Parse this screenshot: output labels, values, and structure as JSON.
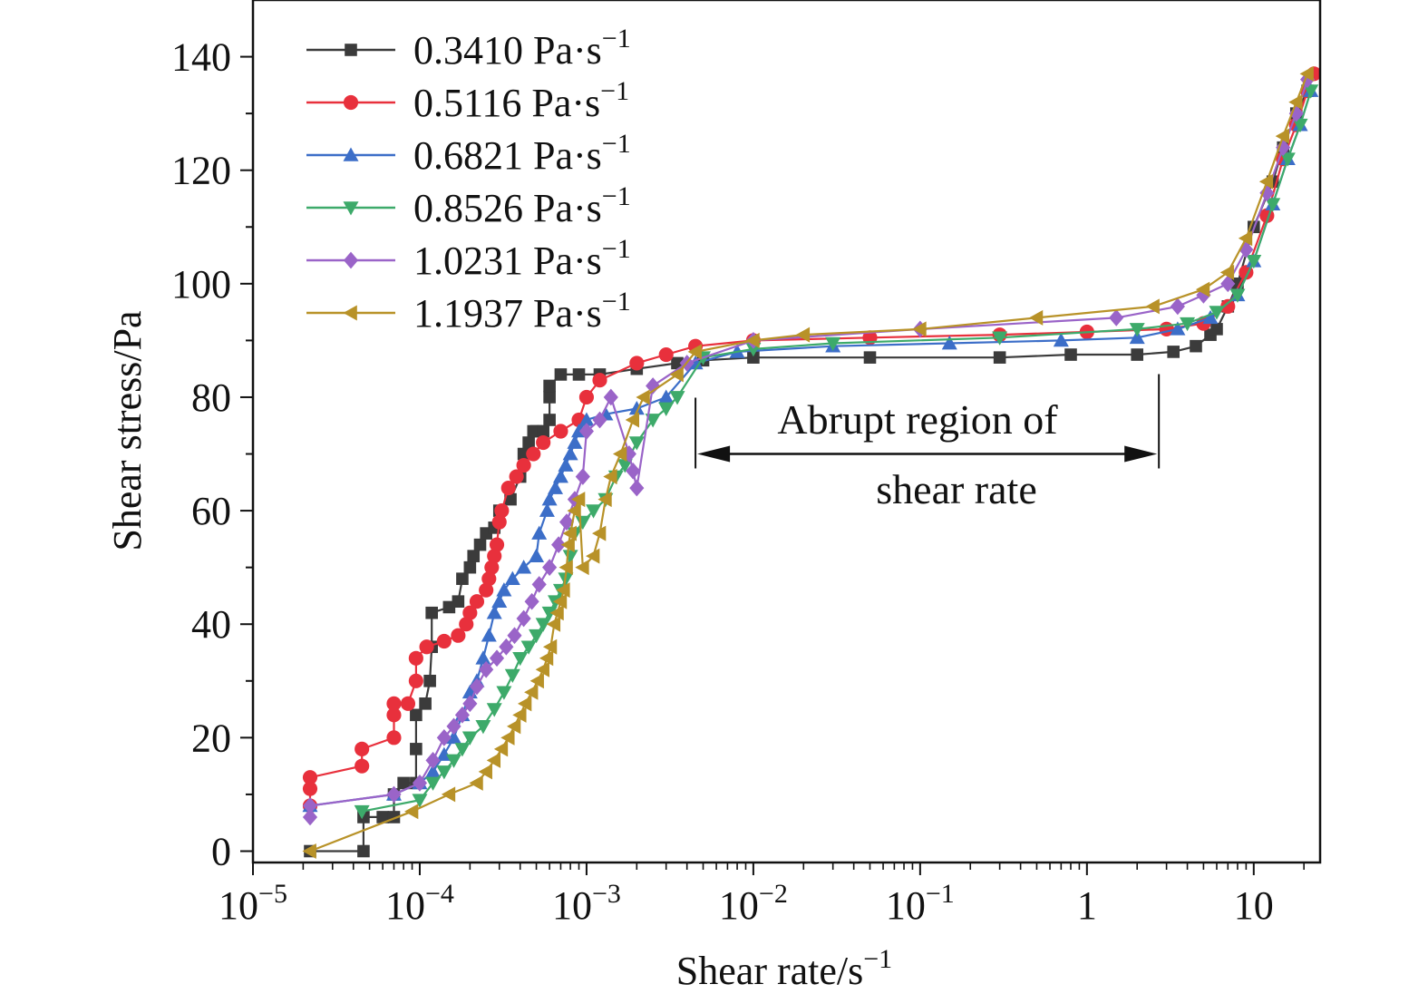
{
  "chart_data": {
    "type": "scatter",
    "title": "",
    "xlabel": "Shear rate/s",
    "xlabel_sup": "−1",
    "ylabel": "Shear stress/Pa",
    "xscale": "log",
    "xlim": [
      1e-05,
      25
    ],
    "ylim": [
      -2,
      150
    ],
    "grid": false,
    "legend_position": "top-left",
    "x_ticks": [
      {
        "value": 1e-05,
        "base": "10",
        "sup": "−5"
      },
      {
        "value": 0.0001,
        "base": "10",
        "sup": "−4"
      },
      {
        "value": 0.001,
        "base": "10",
        "sup": "−3"
      },
      {
        "value": 0.01,
        "base": "10",
        "sup": "−2"
      },
      {
        "value": 0.1,
        "base": "10",
        "sup": "−1"
      },
      {
        "value": 1,
        "base": "1",
        "sup": ""
      },
      {
        "value": 10,
        "base": "10",
        "sup": ""
      }
    ],
    "y_ticks": [
      0,
      20,
      40,
      60,
      80,
      100,
      120,
      140
    ],
    "series": [
      {
        "name": "0.3410 Pa·s",
        "name_sup": "−1",
        "color": "#3b3b3b",
        "marker": "square",
        "points": [
          [
            2.2e-05,
            0
          ],
          [
            4.6e-05,
            0
          ],
          [
            4.6e-05,
            6
          ],
          [
            6e-05,
            6
          ],
          [
            7e-05,
            6
          ],
          [
            7e-05,
            10
          ],
          [
            8e-05,
            12
          ],
          [
            9.5e-05,
            12
          ],
          [
            9.5e-05,
            18
          ],
          [
            9.5e-05,
            24
          ],
          [
            0.000108,
            26
          ],
          [
            0.000115,
            30
          ],
          [
            0.000118,
            36
          ],
          [
            0.000118,
            42
          ],
          [
            0.00015,
            43
          ],
          [
            0.00017,
            44
          ],
          [
            0.00018,
            48
          ],
          [
            0.0002,
            50
          ],
          [
            0.00021,
            52
          ],
          [
            0.00023,
            54
          ],
          [
            0.00025,
            56
          ],
          [
            0.00028,
            57
          ],
          [
            0.0003,
            60
          ],
          [
            0.00035,
            62
          ],
          [
            0.0004,
            66
          ],
          [
            0.00042,
            70
          ],
          [
            0.00045,
            72
          ],
          [
            0.00048,
            74
          ],
          [
            0.0005,
            74
          ],
          [
            0.00055,
            74
          ],
          [
            0.0006,
            76
          ],
          [
            0.0006,
            80
          ],
          [
            0.0006,
            82
          ],
          [
            0.0007,
            84
          ],
          [
            0.0009,
            84
          ],
          [
            0.0012,
            84
          ],
          [
            0.002,
            85
          ],
          [
            0.0035,
            86
          ],
          [
            0.005,
            86.5
          ],
          [
            0.01,
            87
          ],
          [
            0.05,
            87
          ],
          [
            0.3,
            87
          ],
          [
            0.8,
            87.5
          ],
          [
            2,
            87.5
          ],
          [
            3.3,
            88
          ],
          [
            4.5,
            89
          ],
          [
            5.5,
            91
          ],
          [
            6,
            92
          ],
          [
            7,
            96
          ],
          [
            8,
            100
          ],
          [
            10,
            110
          ],
          [
            13,
            118
          ],
          [
            15,
            124
          ],
          [
            18,
            130
          ],
          [
            21,
            134
          ]
        ]
      },
      {
        "name": "0.5116 Pa·s",
        "name_sup": "−1",
        "color": "#e8303c",
        "marker": "circle",
        "points": [
          [
            2.2e-05,
            8
          ],
          [
            2.2e-05,
            11
          ],
          [
            2.2e-05,
            13
          ],
          [
            4.5e-05,
            15
          ],
          [
            4.5e-05,
            18
          ],
          [
            7e-05,
            20
          ],
          [
            7e-05,
            24
          ],
          [
            7e-05,
            26
          ],
          [
            8.5e-05,
            26
          ],
          [
            9.5e-05,
            30
          ],
          [
            9.5e-05,
            34
          ],
          [
            0.00011,
            36
          ],
          [
            0.00014,
            37
          ],
          [
            0.00017,
            38
          ],
          [
            0.00019,
            40
          ],
          [
            0.0002,
            42
          ],
          [
            0.00022,
            44
          ],
          [
            0.00025,
            46
          ],
          [
            0.00026,
            48
          ],
          [
            0.00027,
            50
          ],
          [
            0.00028,
            52
          ],
          [
            0.00029,
            54
          ],
          [
            0.0003,
            58
          ],
          [
            0.00031,
            60
          ],
          [
            0.00034,
            64
          ],
          [
            0.00038,
            66
          ],
          [
            0.00042,
            68
          ],
          [
            0.00048,
            70
          ],
          [
            0.00055,
            72
          ],
          [
            0.0007,
            74
          ],
          [
            0.0009,
            76
          ],
          [
            0.001,
            80
          ],
          [
            0.0012,
            83
          ],
          [
            0.002,
            86
          ],
          [
            0.003,
            87.5
          ],
          [
            0.0045,
            89
          ],
          [
            0.01,
            90
          ],
          [
            0.05,
            90.5
          ],
          [
            0.3,
            91
          ],
          [
            1,
            91.5
          ],
          [
            3,
            92
          ],
          [
            5,
            93
          ],
          [
            7,
            96
          ],
          [
            9,
            102
          ],
          [
            12,
            112
          ],
          [
            15,
            122
          ],
          [
            18,
            128
          ],
          [
            21,
            134
          ],
          [
            23,
            137
          ]
        ]
      },
      {
        "name": "0.6821 Pa·s",
        "name_sup": "−1",
        "color": "#3c6ec8",
        "marker": "triangle-up",
        "points": [
          [
            2.2e-05,
            8
          ],
          [
            7e-05,
            10
          ],
          [
            0.0001,
            12
          ],
          [
            0.00012,
            14
          ],
          [
            0.00014,
            17
          ],
          [
            0.00016,
            20
          ],
          [
            0.00018,
            24
          ],
          [
            0.0002,
            28
          ],
          [
            0.00022,
            30
          ],
          [
            0.00024,
            34
          ],
          [
            0.00026,
            38
          ],
          [
            0.00028,
            42
          ],
          [
            0.0003,
            44
          ],
          [
            0.00032,
            46
          ],
          [
            0.00036,
            48
          ],
          [
            0.00042,
            50
          ],
          [
            0.0005,
            52
          ],
          [
            0.00052,
            56
          ],
          [
            0.00058,
            60
          ],
          [
            0.0006,
            62
          ],
          [
            0.00065,
            64
          ],
          [
            0.0007,
            66
          ],
          [
            0.00075,
            68
          ],
          [
            0.0008,
            70
          ],
          [
            0.00085,
            72
          ],
          [
            0.0009,
            74
          ],
          [
            0.001,
            76
          ],
          [
            0.0013,
            77
          ],
          [
            0.002,
            78
          ],
          [
            0.003,
            80
          ],
          [
            0.0045,
            86
          ],
          [
            0.008,
            88
          ],
          [
            0.03,
            89
          ],
          [
            0.15,
            89.5
          ],
          [
            0.7,
            90
          ],
          [
            2,
            90.5
          ],
          [
            3.5,
            92
          ],
          [
            5.5,
            94
          ],
          [
            8,
            98
          ],
          [
            10,
            104
          ],
          [
            13,
            114
          ],
          [
            16,
            122
          ],
          [
            19,
            128
          ],
          [
            22,
            134
          ]
        ]
      },
      {
        "name": "0.8526 Pa·s",
        "name_sup": "−1",
        "color": "#3daa6a",
        "marker": "triangle-down",
        "points": [
          [
            4.5e-05,
            7
          ],
          [
            0.0001,
            9
          ],
          [
            0.00012,
            12
          ],
          [
            0.00014,
            14
          ],
          [
            0.00016,
            16
          ],
          [
            0.00018,
            18
          ],
          [
            0.0002,
            20
          ],
          [
            0.00024,
            22
          ],
          [
            0.00028,
            25
          ],
          [
            0.00032,
            28
          ],
          [
            0.00036,
            31
          ],
          [
            0.0004,
            34
          ],
          [
            0.00045,
            36
          ],
          [
            0.0005,
            38
          ],
          [
            0.00055,
            40
          ],
          [
            0.0006,
            42
          ],
          [
            0.00065,
            44
          ],
          [
            0.0007,
            46
          ],
          [
            0.00075,
            48
          ],
          [
            0.0008,
            52
          ],
          [
            0.00085,
            56
          ],
          [
            0.00095,
            58
          ],
          [
            0.0011,
            60
          ],
          [
            0.0013,
            62
          ],
          [
            0.0015,
            66
          ],
          [
            0.0017,
            68
          ],
          [
            0.002,
            72
          ],
          [
            0.0025,
            76
          ],
          [
            0.003,
            78
          ],
          [
            0.0035,
            80
          ],
          [
            0.005,
            87
          ],
          [
            0.01,
            88.5
          ],
          [
            0.03,
            89.5
          ],
          [
            0.3,
            90.5
          ],
          [
            2,
            92
          ],
          [
            4,
            93
          ],
          [
            6,
            95
          ],
          [
            8,
            98
          ],
          [
            10,
            104
          ],
          [
            13,
            114
          ],
          [
            16,
            122
          ],
          [
            19,
            128
          ],
          [
            22,
            134
          ]
        ]
      },
      {
        "name": "1.0231 Pa·s",
        "name_sup": "−1",
        "color": "#9a64c8",
        "marker": "diamond",
        "points": [
          [
            2.2e-05,
            6
          ],
          [
            2.2e-05,
            8
          ],
          [
            7e-05,
            10
          ],
          [
            0.0001,
            12
          ],
          [
            0.00012,
            16
          ],
          [
            0.00014,
            20
          ],
          [
            0.00016,
            22
          ],
          [
            0.00018,
            24
          ],
          [
            0.0002,
            26
          ],
          [
            0.00022,
            29
          ],
          [
            0.00025,
            32
          ],
          [
            0.00029,
            34
          ],
          [
            0.00033,
            36
          ],
          [
            0.00037,
            38
          ],
          [
            0.00042,
            41
          ],
          [
            0.00047,
            44
          ],
          [
            0.00052,
            47
          ],
          [
            0.0006,
            50
          ],
          [
            0.00068,
            54
          ],
          [
            0.00076,
            58
          ],
          [
            0.00085,
            62
          ],
          [
            0.00095,
            66
          ],
          [
            0.001,
            74
          ],
          [
            0.0012,
            76
          ],
          [
            0.0014,
            80
          ],
          [
            0.0018,
            70
          ],
          [
            0.0019,
            67
          ],
          [
            0.002,
            64
          ],
          [
            0.0025,
            82
          ],
          [
            0.004,
            86
          ],
          [
            0.01,
            90
          ],
          [
            0.1,
            92
          ],
          [
            1.5,
            94
          ],
          [
            3.5,
            96
          ],
          [
            5,
            98
          ],
          [
            7,
            100
          ],
          [
            9,
            106
          ],
          [
            12,
            116
          ],
          [
            15,
            124
          ],
          [
            18,
            130
          ],
          [
            21,
            136
          ]
        ]
      },
      {
        "name": "1.1937 Pa·s",
        "name_sup": "−1",
        "color": "#b89228",
        "marker": "triangle-left",
        "points": [
          [
            2.2e-05,
            0
          ],
          [
            9e-05,
            7
          ],
          [
            0.00015,
            10
          ],
          [
            0.00022,
            12
          ],
          [
            0.00025,
            14
          ],
          [
            0.00028,
            16
          ],
          [
            0.00031,
            18
          ],
          [
            0.00034,
            20
          ],
          [
            0.00037,
            22
          ],
          [
            0.0004,
            24
          ],
          [
            0.00043,
            26
          ],
          [
            0.00047,
            28
          ],
          [
            0.00051,
            30
          ],
          [
            0.00055,
            32
          ],
          [
            0.00058,
            34
          ],
          [
            0.00061,
            36
          ],
          [
            0.00064,
            40
          ],
          [
            0.00067,
            42
          ],
          [
            0.0007,
            44
          ],
          [
            0.00073,
            46
          ],
          [
            0.00076,
            50
          ],
          [
            0.00078,
            54
          ],
          [
            0.0008,
            56
          ],
          [
            0.00085,
            60
          ],
          [
            0.0009,
            62
          ],
          [
            0.00095,
            50
          ],
          [
            0.0011,
            52
          ],
          [
            0.0012,
            56
          ],
          [
            0.0013,
            62
          ],
          [
            0.0014,
            66
          ],
          [
            0.0016,
            70
          ],
          [
            0.0019,
            76
          ],
          [
            0.0022,
            80
          ],
          [
            0.0035,
            84
          ],
          [
            0.0045,
            88
          ],
          [
            0.01,
            90
          ],
          [
            0.02,
            91
          ],
          [
            0.1,
            92
          ],
          [
            0.5,
            94
          ],
          [
            2.5,
            96
          ],
          [
            5,
            99
          ],
          [
            7,
            102
          ],
          [
            9,
            108
          ],
          [
            12,
            118
          ],
          [
            15,
            126
          ],
          [
            18,
            132
          ],
          [
            21,
            137
          ]
        ]
      }
    ],
    "annotation": {
      "line1": "Abrupt region of",
      "line2": "shear rate",
      "x_start": 0.0045,
      "x_end": 2.7,
      "y_arrow": 70
    }
  }
}
